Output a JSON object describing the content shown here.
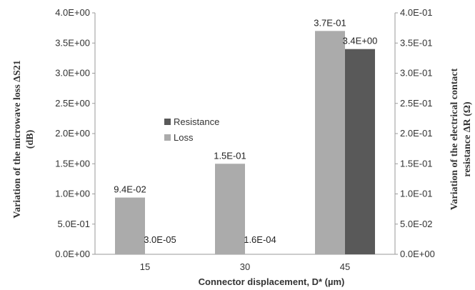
{
  "chart_data": {
    "type": "bar",
    "categories": [
      "15",
      "30",
      "45"
    ],
    "xlabel": "Connector displacement, D* (µm)",
    "ylabel_left_line1": "Variation of the microwave loss ΔS21",
    "ylabel_left_line2": "(dB)",
    "ylabel_right_line1": "Variation of the electrical contact",
    "ylabel_right_line2": "resistance ΔR (Ω)",
    "ylim_left": [
      0,
      4.0
    ],
    "ylim_right": [
      0,
      0.4
    ],
    "left_ticks": [
      "0.0E+00",
      "5.0E-01",
      "1.0E+00",
      "1.5E+00",
      "2.0E+00",
      "2.5E+00",
      "3.0E+00",
      "3.5E+00",
      "4.0E+00"
    ],
    "right_ticks": [
      "0.0E+00",
      "5.0E-02",
      "1.0E-01",
      "1.5E-01",
      "2.0E-01",
      "2.5E-01",
      "3.0E-01",
      "3.5E-01",
      "4.0E-01"
    ],
    "legend_position": "center-left",
    "grid": false,
    "series": [
      {
        "name": "Resistance",
        "color": "#595959",
        "axis": "left",
        "values": [
          3e-05,
          0.00016,
          3.4
        ],
        "labels": [
          "3.0E-05",
          "1.6E-04",
          "3.4E+00"
        ]
      },
      {
        "name": "Loss",
        "color": "#ababab",
        "axis": "right",
        "values": [
          0.094,
          0.15,
          0.37
        ],
        "labels": [
          "9.4E-02",
          "1.5E-01",
          "3.7E-01"
        ]
      }
    ]
  }
}
